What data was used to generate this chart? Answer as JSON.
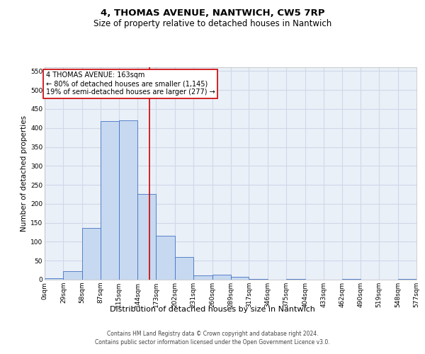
{
  "title_line1": "4, THOMAS AVENUE, NANTWICH, CW5 7RP",
  "title_line2": "Size of property relative to detached houses in Nantwich",
  "xlabel": "Distribution of detached houses by size in Nantwich",
  "ylabel": "Number of detached properties",
  "footer_line1": "Contains HM Land Registry data © Crown copyright and database right 2024.",
  "footer_line2": "Contains public sector information licensed under the Open Government Licence v3.0.",
  "bar_left_edges": [
    0,
    29,
    58,
    87,
    115,
    144,
    173,
    202,
    231,
    260,
    289,
    317,
    346,
    375,
    404,
    433,
    462,
    490,
    519,
    548
  ],
  "bar_widths": [
    29,
    29,
    29,
    28,
    29,
    29,
    29,
    29,
    29,
    29,
    28,
    29,
    29,
    29,
    29,
    29,
    28,
    29,
    29,
    29
  ],
  "bar_heights": [
    3,
    22,
    137,
    418,
    420,
    225,
    116,
    59,
    12,
    14,
    7,
    2,
    0,
    2,
    0,
    0,
    1,
    0,
    0,
    1
  ],
  "bar_color": "#c6d9f0",
  "bar_edge_color": "#4472c4",
  "property_size": 163,
  "property_label": "4 THOMAS AVENUE: 163sqm",
  "annotation_line1": "← 80% of detached houses are smaller (1,145)",
  "annotation_line2": "19% of semi-detached houses are larger (277) →",
  "vline_color": "#cc0000",
  "annotation_box_edge_color": "#cc0000",
  "annotation_box_face_color": "#ffffff",
  "xlim": [
    0,
    577
  ],
  "ylim": [
    0,
    560
  ],
  "yticks": [
    0,
    50,
    100,
    150,
    200,
    250,
    300,
    350,
    400,
    450,
    500,
    550
  ],
  "xtick_labels": [
    "0sqm",
    "29sqm",
    "58sqm",
    "87sqm",
    "115sqm",
    "144sqm",
    "173sqm",
    "202sqm",
    "231sqm",
    "260sqm",
    "289sqm",
    "317sqm",
    "346sqm",
    "375sqm",
    "404sqm",
    "433sqm",
    "462sqm",
    "490sqm",
    "519sqm",
    "548sqm",
    "577sqm"
  ],
  "xtick_positions": [
    0,
    29,
    58,
    87,
    115,
    144,
    173,
    202,
    231,
    260,
    289,
    317,
    346,
    375,
    404,
    433,
    462,
    490,
    519,
    548,
    577
  ],
  "grid_color": "#d0d8e8",
  "bg_color": "#eaf0f8",
  "title_fontsize": 9.5,
  "subtitle_fontsize": 8.5,
  "xlabel_fontsize": 8,
  "ylabel_fontsize": 7.5,
  "tick_fontsize": 6.5,
  "annotation_fontsize": 7,
  "footer_fontsize": 5.5
}
